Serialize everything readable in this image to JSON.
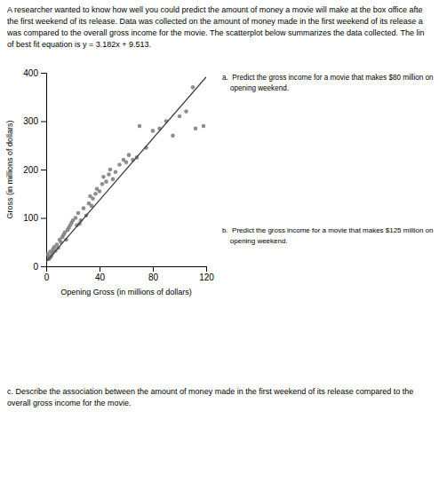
{
  "chart_data": {
    "type": "scatter",
    "description": [
      "A researcher wanted to know how well you could predict the amount of money a movie will make at the box office afte",
      "the first weekend of its release. Data was collected on the amount of money made in the first weekend of its release a",
      "was compared to the overall gross income for the movie. The scatterplot below summarizes the data collected. The lin",
      "of best fit equation is y = 3.182x + 9.513."
    ],
    "annotations": [
      "a.  Predict the gross income for a movie that makes $80 million on\n    opening weekend.",
      "b.  Predict the gross income for a movie that makes $125 million on\n    opening weekend.",
      "c. Describe the association between the amount of money made in the first weekend of its release compared to the\noverall gross income for the movie."
    ],
    "xlabel": "Opening Gross (in millions of dollars)",
    "ylabel": "Gross (in millions of dollars)",
    "xlim": [
      0,
      120
    ],
    "ylim": [
      0,
      400
    ],
    "xticks": [
      0,
      40,
      80,
      120
    ],
    "yticks": [
      0,
      100,
      200,
      300,
      400
    ],
    "grid": false,
    "series": [
      {
        "type": "scatter",
        "marker": "circle",
        "color": "#7a7a7a",
        "x": [
          1,
          2,
          2,
          3,
          3,
          4,
          5,
          5,
          6,
          7,
          8,
          9,
          10,
          11,
          12,
          13,
          14,
          15,
          16,
          17,
          18,
          19,
          20,
          22,
          23,
          24,
          25,
          26,
          28,
          30,
          32,
          33,
          34,
          35,
          37,
          38,
          40,
          42,
          43,
          45,
          47,
          48,
          50,
          52,
          55,
          58,
          60,
          62,
          65,
          68,
          70,
          75,
          80,
          85,
          90,
          95,
          100,
          105,
          110,
          112,
          118
        ],
        "values": [
          25,
          20,
          15,
          30,
          18,
          22,
          35,
          28,
          40,
          32,
          45,
          38,
          55,
          50,
          60,
          65,
          70,
          55,
          75,
          80,
          85,
          90,
          95,
          100,
          85,
          110,
          88,
          95,
          120,
          105,
          130,
          145,
          125,
          140,
          150,
          160,
          155,
          170,
          185,
          175,
          190,
          200,
          180,
          195,
          210,
          220,
          215,
          230,
          220,
          225,
          290,
          245,
          280,
          285,
          300,
          270,
          310,
          320,
          370,
          285,
          290
        ]
      },
      {
        "type": "line",
        "line_style": "solid",
        "color": "#3a3a3a",
        "x": [
          0,
          120
        ],
        "values": [
          9.513,
          391.353
        ]
      }
    ]
  }
}
